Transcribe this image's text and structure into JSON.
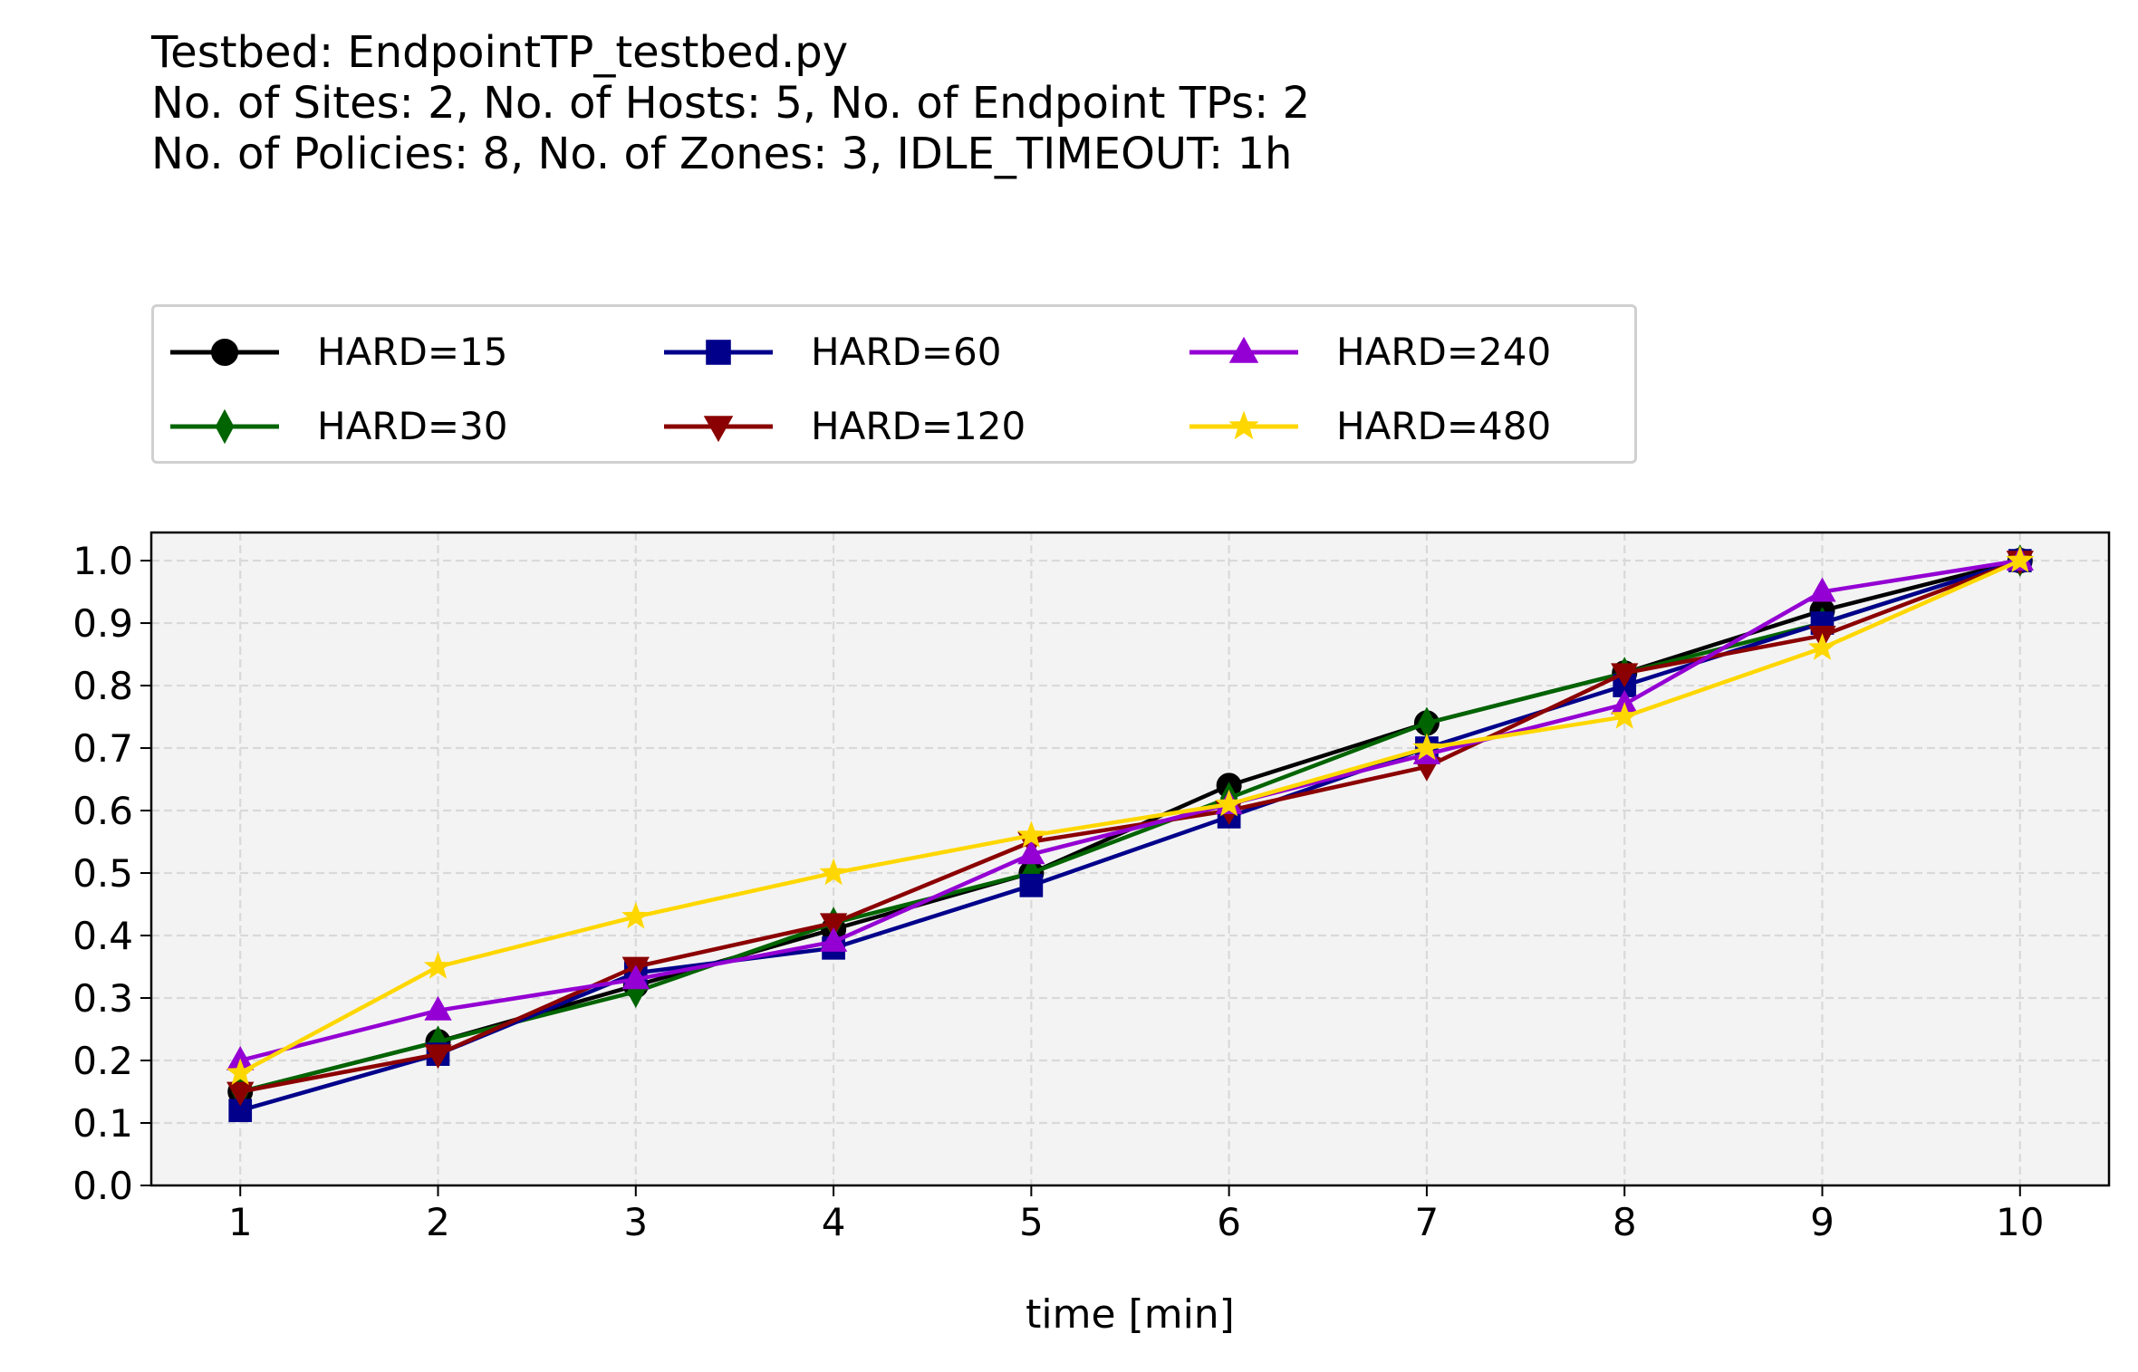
{
  "title": {
    "lines": [
      "Testbed: EndpointTP_testbed.py",
      "No. of Sites: 2, No. of Hosts: 5, No. of Endpoint TPs: 2",
      "No. of Policies: 8, No. of Zones: 3, IDLE_TIMEOUT: 1h"
    ]
  },
  "chart_data": {
    "type": "line",
    "xlabel": "time [min]",
    "ylabel": "",
    "x": [
      1,
      2,
      3,
      4,
      5,
      6,
      7,
      8,
      9,
      10
    ],
    "xticks": [
      "1",
      "2",
      "3",
      "4",
      "5",
      "6",
      "7",
      "8",
      "9",
      "10"
    ],
    "yticks": [
      "0.0",
      "0.1",
      "0.2",
      "0.3",
      "0.4",
      "0.5",
      "0.6",
      "0.7",
      "0.8",
      "0.9",
      "1.0"
    ],
    "xlim": [
      0.55,
      10.45
    ],
    "ylim": [
      0.0,
      1.045
    ],
    "grid": true,
    "legend_position": "above plot, 3 columns",
    "series": [
      {
        "name": "HARD=15",
        "color": "#000000",
        "marker": "circle",
        "values": [
          0.15,
          0.23,
          0.32,
          0.41,
          0.5,
          0.64,
          0.74,
          0.82,
          0.92,
          1.0
        ]
      },
      {
        "name": "HARD=30",
        "color": "#006400",
        "marker": "thin-diamond",
        "values": [
          0.15,
          0.23,
          0.31,
          0.42,
          0.5,
          0.62,
          0.74,
          0.82,
          0.9,
          1.0
        ]
      },
      {
        "name": "HARD=60",
        "color": "#00008b",
        "marker": "square",
        "values": [
          0.12,
          0.21,
          0.34,
          0.38,
          0.48,
          0.59,
          0.7,
          0.8,
          0.9,
          1.0
        ]
      },
      {
        "name": "HARD=120",
        "color": "#8b0000",
        "marker": "triangle-down",
        "values": [
          0.15,
          0.21,
          0.35,
          0.42,
          0.55,
          0.6,
          0.67,
          0.82,
          0.88,
          1.0
        ]
      },
      {
        "name": "HARD=240",
        "color": "#9400d3",
        "marker": "triangle-up",
        "values": [
          0.2,
          0.28,
          0.33,
          0.39,
          0.53,
          0.61,
          0.69,
          0.77,
          0.95,
          1.0
        ]
      },
      {
        "name": "HARD=480",
        "color": "#ffd700",
        "marker": "star",
        "values": [
          0.18,
          0.35,
          0.43,
          0.5,
          0.56,
          0.61,
          0.7,
          0.75,
          0.86,
          1.0
        ]
      }
    ]
  },
  "colors": {
    "plot_background": "#f3f3f3",
    "grid": "#d9d9d9",
    "legend_border": "#d0d0d0"
  }
}
